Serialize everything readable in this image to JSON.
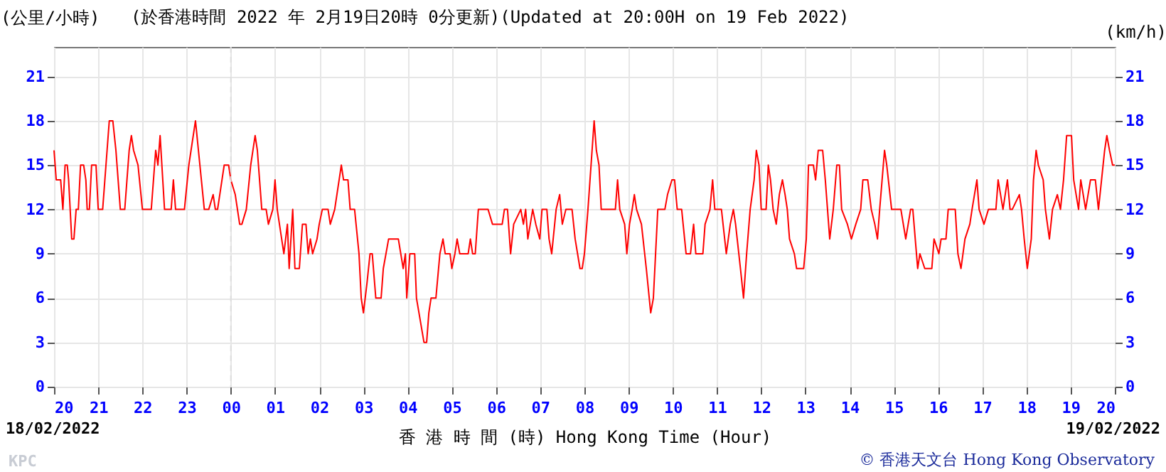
{
  "chart_data": {
    "type": "line",
    "title": "(於香港時間 2022 年 2月19日20時 0分更新)(Updated at 20:00H on 19 Feb 2022)",
    "xlabel": "香 港 時 間 (時) Hong Kong Time (Hour)",
    "ylabel": "(公里/小時)",
    "y2label": "(km/h)",
    "annotations": [
      "18/02/2022",
      "19/02/2022",
      "KPC",
      "© 香港天文台 Hong Kong Observatory"
    ],
    "x": [
      20,
      20.05,
      20.15,
      20.2,
      20.25,
      20.3,
      20.33,
      20.4,
      20.45,
      20.5,
      20.55,
      20.6,
      20.67,
      20.72,
      20.75,
      20.8,
      20.85,
      20.95,
      21.0,
      21.1,
      21.2,
      21.25,
      21.33,
      21.4,
      21.5,
      21.6,
      21.7,
      21.75,
      21.8,
      21.9,
      22.0,
      22.2,
      22.3,
      22.35,
      22.4,
      22.5,
      22.65,
      22.7,
      22.75,
      22.95,
      23.05,
      23.2,
      23.3,
      23.4,
      23.5,
      23.6,
      23.65,
      23.7,
      23.85,
      23.95,
      24.0,
      24.1,
      24.2,
      24.25,
      24.35,
      24.45,
      24.55,
      24.6,
      24.7,
      24.8,
      24.85,
      24.95,
      25.0,
      25.05,
      25.15,
      25.2,
      25.28,
      25.32,
      25.4,
      25.45,
      25.55,
      25.62,
      25.7,
      25.75,
      25.8,
      25.85,
      25.95,
      26.0,
      26.07,
      26.2,
      26.25,
      26.35,
      26.45,
      26.5,
      26.55,
      26.65,
      26.7,
      26.8,
      26.9,
      26.95,
      27.0,
      27.08,
      27.15,
      27.2,
      27.28,
      27.4,
      27.45,
      27.57,
      27.79,
      27.9,
      27.95,
      27.98,
      28.05,
      28.1,
      28.16,
      28.2,
      28.37,
      28.43,
      28.48,
      28.53,
      28.64,
      28.73,
      28.8,
      28.85,
      28.96,
      29.0,
      29.07,
      29.12,
      29.18,
      29.37,
      29.42,
      29.47,
      29.53,
      29.6,
      29.82,
      29.92,
      30.14,
      30.19,
      30.26,
      30.33,
      30.4,
      30.56,
      30.62,
      30.67,
      30.72,
      30.83,
      30.9,
      30.99,
      31.04,
      31.15,
      31.2,
      31.26,
      31.36,
      31.44,
      31.5,
      31.58,
      31.72,
      31.79,
      31.9,
      31.95,
      32.0,
      32.08,
      32.15,
      32.22,
      32.27,
      32.33,
      32.38,
      32.7,
      32.75,
      32.8,
      32.91,
      32.96,
      33.02,
      33.08,
      33.13,
      33.18,
      33.29,
      33.4,
      33.5,
      33.56,
      33.66,
      33.82,
      33.88,
      33.98,
      34.04,
      34.1,
      34.2,
      34.3,
      34.4,
      34.47,
      34.52,
      34.68,
      34.73,
      34.84,
      34.9,
      34.95,
      35.1,
      35.21,
      35.3,
      35.37,
      35.42,
      35.53,
      35.6,
      35.67,
      35.75,
      35.84,
      35.89,
      35.95,
      36.0,
      36.11,
      36.16,
      36.21,
      36.27,
      36.34,
      36.41,
      36.48,
      36.54,
      36.59,
      36.64,
      36.75,
      36.8,
      36.96,
      37.02,
      37.07,
      37.18,
      37.23,
      37.29,
      37.39,
      37.45,
      37.5,
      37.55,
      37.63,
      37.71,
      37.77,
      37.82,
      37.95,
      38.04,
      38.14,
      38.25,
      38.3,
      38.41,
      38.49,
      38.57,
      38.63,
      38.68,
      38.79,
      38.84,
      38.95,
      39.16,
      39.27,
      39.38,
      39.43,
      39.54,
      39.59,
      39.7,
      39.86,
      39.91,
      40.02,
      40.07,
      40.18,
      40.23,
      40.39,
      40.45,
      40.52,
      40.61,
      40.72,
      40.77,
      40.88,
      40.93,
      41.04,
      41.14,
      41.31,
      41.36,
      41.47,
      41.57,
      41.63,
      41.68,
      41.84,
      41.89,
      41.95,
      42.02,
      42.11,
      42.16,
      42.22,
      42.27,
      42.38,
      42.43,
      42.52,
      42.59,
      42.7,
      42.77,
      42.84,
      42.91,
      43.02,
      43.07,
      43.18,
      43.23,
      43.34,
      43.45,
      43.56,
      43.63,
      43.7,
      43.77,
      43.82,
      43.88,
      43.95,
      44.0
    ],
    "series": [
      {
        "color": "#ff0000",
        "values": [
          16,
          14,
          14,
          12,
          15,
          15,
          14,
          10,
          10,
          12,
          12,
          15,
          15,
          14,
          12,
          12,
          15,
          15,
          12,
          12,
          16,
          18,
          18,
          16,
          12,
          12,
          16,
          17,
          16,
          15,
          12,
          12,
          16,
          15,
          17,
          12,
          12,
          14,
          12,
          12,
          15,
          18,
          15,
          12,
          12,
          13,
          12,
          12,
          15,
          15,
          14,
          13,
          11,
          11,
          12,
          15,
          17,
          16,
          12,
          12,
          11,
          12,
          14,
          12,
          10,
          9,
          11,
          8,
          12,
          8,
          8,
          11,
          11,
          9,
          10,
          9,
          10,
          11,
          12,
          12,
          11,
          12,
          14,
          15,
          14,
          14,
          12,
          12,
          9,
          6,
          5,
          7,
          9,
          9,
          6,
          6,
          8,
          10,
          10,
          8,
          9,
          6,
          9,
          9,
          9,
          6,
          3,
          3,
          5,
          6,
          6,
          9,
          10,
          9,
          9,
          8,
          9,
          10,
          9,
          9,
          10,
          9,
          9,
          12,
          12,
          11,
          11,
          12,
          12,
          9,
          11,
          12,
          11,
          12,
          10,
          12,
          11,
          10,
          12,
          12,
          10,
          9,
          12,
          13,
          11,
          12,
          12,
          10,
          8,
          8,
          9,
          12,
          15,
          18,
          16,
          15,
          12,
          12,
          14,
          12,
          11,
          9,
          11,
          12,
          13,
          12,
          11,
          8,
          5,
          6,
          12,
          12,
          13,
          14,
          14,
          12,
          12,
          9,
          9,
          11,
          9,
          9,
          11,
          12,
          14,
          12,
          12,
          9,
          11,
          12,
          11,
          8,
          6,
          9,
          12,
          14,
          16,
          15,
          12,
          12,
          15,
          14,
          12,
          11,
          13,
          14,
          13,
          12,
          10,
          9,
          8,
          8,
          10,
          15,
          15,
          14,
          16,
          16,
          14,
          12,
          10,
          12,
          15,
          15,
          12,
          11,
          10,
          11,
          12,
          14,
          14,
          12,
          11,
          10,
          12,
          16,
          15,
          12,
          12,
          10,
          12,
          12,
          8,
          9,
          8,
          8,
          10,
          9,
          10,
          10,
          12,
          12,
          9,
          8,
          10,
          11,
          12,
          14,
          12,
          11,
          12,
          12,
          14,
          12,
          14,
          12,
          12,
          13,
          12,
          10,
          8,
          10,
          14,
          16,
          15,
          14,
          12,
          10,
          12,
          13,
          12,
          14,
          17,
          17,
          14,
          12,
          14,
          12,
          14,
          14,
          12,
          14,
          16,
          17,
          16,
          15,
          15
        ]
      }
    ],
    "xlim": [
      20,
      44
    ],
    "xticks": [
      {
        "value": 20,
        "label": "20"
      },
      {
        "value": 21,
        "label": "21"
      },
      {
        "value": 22,
        "label": "22"
      },
      {
        "value": 23,
        "label": "23"
      },
      {
        "value": 24,
        "label": "00"
      },
      {
        "value": 25,
        "label": "01"
      },
      {
        "value": 26,
        "label": "02"
      },
      {
        "value": 27,
        "label": "03"
      },
      {
        "value": 28,
        "label": "04"
      },
      {
        "value": 29,
        "label": "05"
      },
      {
        "value": 30,
        "label": "06"
      },
      {
        "value": 31,
        "label": "07"
      },
      {
        "value": 32,
        "label": "08"
      },
      {
        "value": 33,
        "label": "09"
      },
      {
        "value": 34,
        "label": "10"
      },
      {
        "value": 35,
        "label": "11"
      },
      {
        "value": 36,
        "label": "12"
      },
      {
        "value": 37,
        "label": "13"
      },
      {
        "value": 38,
        "label": "14"
      },
      {
        "value": 39,
        "label": "15"
      },
      {
        "value": 40,
        "label": "16"
      },
      {
        "value": 41,
        "label": "17"
      },
      {
        "value": 42,
        "label": "18"
      },
      {
        "value": 43,
        "label": "19"
      },
      {
        "value": 44,
        "label": "20"
      }
    ],
    "ylim": [
      0,
      23
    ],
    "yticks": [
      0,
      3,
      6,
      9,
      12,
      15,
      18,
      21
    ],
    "y2lim": [
      0,
      23
    ],
    "y2ticks": [
      0,
      3,
      6,
      9,
      12,
      15,
      18,
      21
    ],
    "grid": true,
    "ref_lines": [
      {
        "axis": "x",
        "value": 24,
        "color": "#dddddd",
        "line_style": "dashed"
      }
    ]
  }
}
